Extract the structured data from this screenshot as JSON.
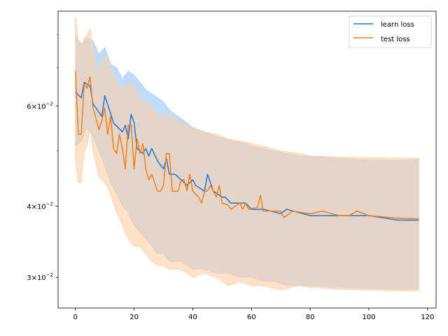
{
  "chart_data": {
    "type": "line",
    "title": "",
    "xlabel": "",
    "ylabel": "",
    "yscale": "log",
    "xlim": [
      -5.9,
      122.9
    ],
    "ylim": [
      0.0265,
      0.088
    ],
    "x_ticks": [
      0,
      20,
      40,
      60,
      80,
      100,
      120
    ],
    "x_tick_labels": [
      "0",
      "20",
      "40",
      "60",
      "80",
      "100",
      "120"
    ],
    "y_major_ticks": [
      {
        "value": 0.03,
        "mantissa": "3",
        "multiply": "×",
        "base": "10",
        "exponent": "−2"
      },
      {
        "value": 0.04,
        "mantissa": "4",
        "multiply": "×",
        "base": "10",
        "exponent": "−2"
      },
      {
        "value": 0.06,
        "mantissa": "6",
        "multiply": "×",
        "base": "10",
        "exponent": "−2"
      }
    ],
    "y_minor_ticks": [
      0.05,
      0.07,
      0.08
    ],
    "legend": {
      "position": "top-right"
    },
    "grid": false,
    "series": [
      {
        "name": "learn loss",
        "color": "#1f77e4",
        "band_color": "#a9d0ff",
        "anchors": [
          [
            0,
            0.0635
          ],
          [
            2,
            0.062
          ],
          [
            3,
            0.066
          ],
          [
            5,
            0.065
          ],
          [
            6,
            0.0605
          ],
          [
            9,
            0.0575
          ],
          [
            10,
            0.0625
          ],
          [
            13,
            0.056
          ],
          [
            16,
            0.054
          ],
          [
            17,
            0.0555
          ],
          [
            18,
            0.0525
          ],
          [
            19,
            0.058
          ],
          [
            20,
            0.056
          ],
          [
            21,
            0.0505
          ],
          [
            23,
            0.0495
          ],
          [
            24,
            0.0505
          ],
          [
            25,
            0.049
          ],
          [
            26,
            0.0505
          ],
          [
            28,
            0.048
          ],
          [
            30,
            0.0465
          ],
          [
            31,
            0.0485
          ],
          [
            32,
            0.0455
          ],
          [
            34,
            0.0455
          ],
          [
            36,
            0.0445
          ],
          [
            38,
            0.0435
          ],
          [
            40,
            0.0445
          ],
          [
            41,
            0.0435
          ],
          [
            44,
            0.0425
          ],
          [
            45,
            0.0455
          ],
          [
            47,
            0.0425
          ],
          [
            50,
            0.0415
          ],
          [
            51,
            0.0415
          ],
          [
            53,
            0.0405
          ],
          [
            58,
            0.0405
          ],
          [
            60,
            0.0395
          ],
          [
            64,
            0.0395
          ],
          [
            70,
            0.0388
          ],
          [
            72,
            0.0395
          ],
          [
            80,
            0.0385
          ],
          [
            90,
            0.0385
          ],
          [
            100,
            0.0385
          ],
          [
            110,
            0.0378
          ],
          [
            117,
            0.0378
          ]
        ],
        "band_anchors": [
          [
            0,
            0.051,
            0.08
          ],
          [
            2,
            0.052,
            0.077
          ],
          [
            4,
            0.055,
            0.079
          ],
          [
            6,
            0.053,
            0.078
          ],
          [
            8,
            0.05,
            0.074
          ],
          [
            10,
            0.047,
            0.076
          ],
          [
            12,
            0.044,
            0.071
          ],
          [
            14,
            0.042,
            0.07
          ],
          [
            16,
            0.04,
            0.067
          ],
          [
            18,
            0.039,
            0.069
          ],
          [
            20,
            0.037,
            0.068
          ],
          [
            22,
            0.036,
            0.066
          ],
          [
            24,
            0.035,
            0.064
          ],
          [
            26,
            0.034,
            0.063
          ],
          [
            28,
            0.033,
            0.062
          ],
          [
            30,
            0.033,
            0.061
          ],
          [
            32,
            0.032,
            0.059
          ],
          [
            36,
            0.032,
            0.057
          ],
          [
            40,
            0.031,
            0.055
          ],
          [
            44,
            0.031,
            0.054
          ],
          [
            48,
            0.0305,
            0.053
          ],
          [
            52,
            0.0305,
            0.0525
          ],
          [
            56,
            0.03,
            0.052
          ],
          [
            60,
            0.03,
            0.051
          ],
          [
            64,
            0.0295,
            0.0505
          ],
          [
            68,
            0.0295,
            0.05
          ],
          [
            72,
            0.029,
            0.0495
          ],
          [
            76,
            0.029,
            0.049
          ],
          [
            80,
            0.029,
            0.049
          ],
          [
            90,
            0.0288,
            0.0485
          ],
          [
            100,
            0.0287,
            0.0482
          ],
          [
            110,
            0.0286,
            0.0482
          ],
          [
            117,
            0.0286,
            0.0483
          ]
        ]
      },
      {
        "name": "test loss",
        "color": "#ff7f0e",
        "band_color": "#ffcfa3",
        "anchors": [
          [
            0,
            0.069
          ],
          [
            1,
            0.0535
          ],
          [
            2,
            0.0535
          ],
          [
            3,
            0.0655
          ],
          [
            4,
            0.0645
          ],
          [
            5,
            0.0675
          ],
          [
            6,
            0.0595
          ],
          [
            8,
            0.0545
          ],
          [
            9,
            0.0565
          ],
          [
            10,
            0.0595
          ],
          [
            11,
            0.0535
          ],
          [
            12,
            0.0575
          ],
          [
            13,
            0.0505
          ],
          [
            14,
            0.0495
          ],
          [
            15,
            0.0535
          ],
          [
            16,
            0.0505
          ],
          [
            17,
            0.0465
          ],
          [
            18,
            0.0555
          ],
          [
            19,
            0.0555
          ],
          [
            20,
            0.0465
          ],
          [
            21,
            0.0525
          ],
          [
            22,
            0.0495
          ],
          [
            23,
            0.0515
          ],
          [
            24,
            0.0465
          ],
          [
            25,
            0.0445
          ],
          [
            26,
            0.0455
          ],
          [
            28,
            0.0425
          ],
          [
            29,
            0.0425
          ],
          [
            30,
            0.0435
          ],
          [
            31,
            0.0495
          ],
          [
            32,
            0.0495
          ],
          [
            33,
            0.0425
          ],
          [
            35,
            0.0425
          ],
          [
            36,
            0.0445
          ],
          [
            37,
            0.0445
          ],
          [
            38,
            0.0425
          ],
          [
            39,
            0.0455
          ],
          [
            40,
            0.0425
          ],
          [
            42,
            0.0415
          ],
          [
            43,
            0.0405
          ],
          [
            44,
            0.0425
          ],
          [
            45,
            0.0425
          ],
          [
            46,
            0.0435
          ],
          [
            48,
            0.0415
          ],
          [
            49,
            0.0435
          ],
          [
            50,
            0.0405
          ],
          [
            52,
            0.0402
          ],
          [
            53,
            0.0395
          ],
          [
            56,
            0.0405
          ],
          [
            57,
            0.0395
          ],
          [
            58,
            0.0405
          ],
          [
            59,
            0.0395
          ],
          [
            62,
            0.0398
          ],
          [
            63,
            0.0418
          ],
          [
            64,
            0.0392
          ],
          [
            70,
            0.0392
          ],
          [
            71,
            0.0382
          ],
          [
            74,
            0.0392
          ],
          [
            80,
            0.0388
          ],
          [
            84,
            0.0392
          ],
          [
            90,
            0.0385
          ],
          [
            93,
            0.0385
          ],
          [
            96,
            0.0392
          ],
          [
            100,
            0.0385
          ],
          [
            110,
            0.0381
          ],
          [
            117,
            0.038
          ]
        ],
        "band_anchors": [
          [
            0,
            0.048,
            0.086
          ],
          [
            1,
            0.044,
            0.078
          ],
          [
            2,
            0.044,
            0.076
          ],
          [
            3,
            0.05,
            0.079
          ],
          [
            4,
            0.051,
            0.08
          ],
          [
            5,
            0.055,
            0.082
          ],
          [
            6,
            0.05,
            0.076
          ],
          [
            8,
            0.045,
            0.068
          ],
          [
            10,
            0.044,
            0.074
          ],
          [
            12,
            0.042,
            0.07
          ],
          [
            14,
            0.039,
            0.066
          ],
          [
            16,
            0.037,
            0.064
          ],
          [
            18,
            0.035,
            0.066
          ],
          [
            20,
            0.034,
            0.065
          ],
          [
            22,
            0.034,
            0.062
          ],
          [
            24,
            0.033,
            0.061
          ],
          [
            26,
            0.032,
            0.06
          ],
          [
            28,
            0.0315,
            0.058
          ],
          [
            30,
            0.0315,
            0.0575
          ],
          [
            32,
            0.031,
            0.058
          ],
          [
            36,
            0.031,
            0.056
          ],
          [
            40,
            0.03,
            0.055
          ],
          [
            44,
            0.0305,
            0.054
          ],
          [
            48,
            0.03,
            0.0535
          ],
          [
            52,
            0.029,
            0.0525
          ],
          [
            56,
            0.0295,
            0.052
          ],
          [
            60,
            0.029,
            0.0515
          ],
          [
            64,
            0.029,
            0.051
          ],
          [
            70,
            0.0285,
            0.05
          ],
          [
            76,
            0.029,
            0.0495
          ],
          [
            80,
            0.0288,
            0.049
          ],
          [
            90,
            0.0286,
            0.0488
          ],
          [
            100,
            0.0285,
            0.0487
          ],
          [
            110,
            0.0284,
            0.0486
          ],
          [
            117,
            0.0284,
            0.0486
          ]
        ]
      }
    ]
  }
}
